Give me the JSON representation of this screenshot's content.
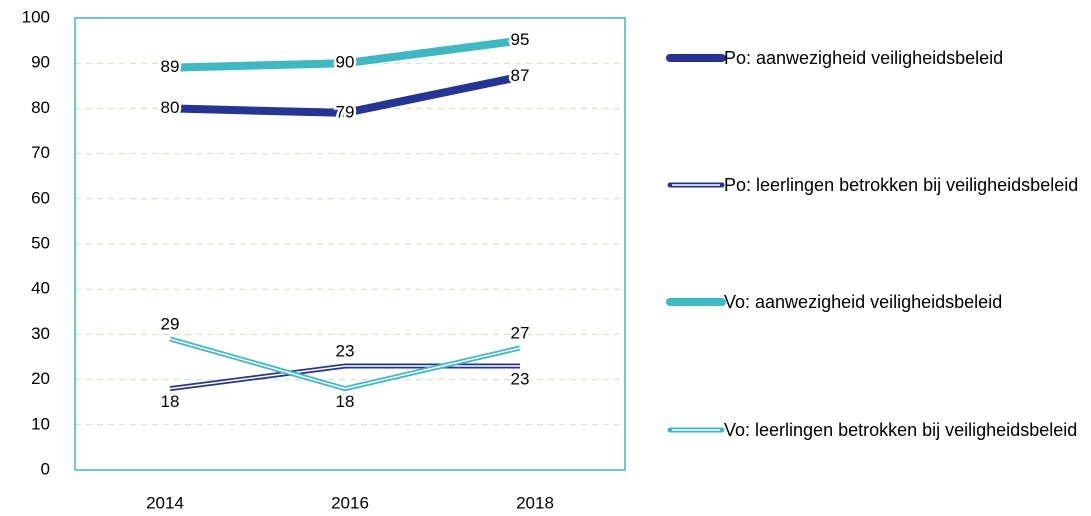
{
  "chart_data": {
    "type": "line",
    "categories": [
      "2014",
      "2016",
      "2018"
    ],
    "ylim": [
      0,
      100
    ],
    "yticks": [
      0,
      10,
      20,
      30,
      40,
      50,
      60,
      70,
      80,
      90,
      100
    ],
    "grid": true,
    "series": [
      {
        "name": "Po: aanwezigheid veiligheidsbeleid",
        "color": "#253596",
        "style": "solid",
        "values": [
          80,
          79,
          87
        ]
      },
      {
        "name": "Po: leerlingen betrokken bij veiligheidsbeleid",
        "color": "#253596",
        "style": "double",
        "values": [
          18,
          23,
          23
        ]
      },
      {
        "name": "Vo: aanwezigheid veiligheidsbeleid",
        "color": "#3cb9c2",
        "style": "solid",
        "values": [
          89,
          90,
          95
        ]
      },
      {
        "name": "Vo: leerlingen betrokken bij veiligheidsbeleid",
        "color": "#3cb9c2",
        "style": "double",
        "values": [
          29,
          18,
          27
        ]
      }
    ]
  }
}
